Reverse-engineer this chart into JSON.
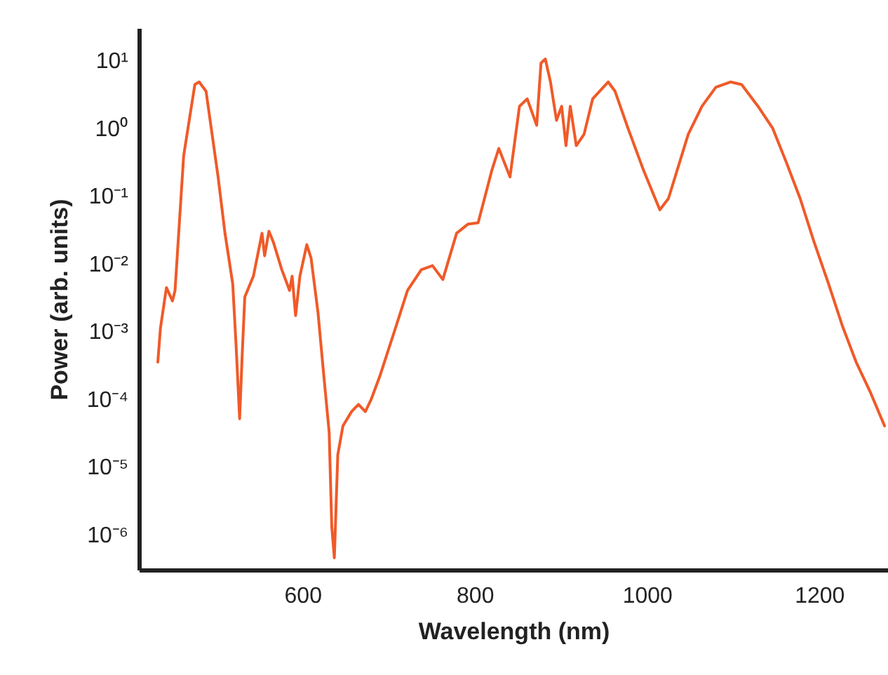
{
  "chart_data": {
    "type": "line",
    "xlabel": "Wavelength (nm)",
    "ylabel": "Power (arb. units)",
    "log": "y",
    "line_style": "solid",
    "xlim": [
      410,
      1280
    ],
    "xticks": [
      600,
      800,
      1000,
      1200
    ],
    "ylim": [
      3e-07,
      30
    ],
    "yticks": [
      {
        "value": 10,
        "label": "10¹"
      },
      {
        "value": 1,
        "label": "10⁰"
      },
      {
        "value": 0.1,
        "label": "10⁻¹"
      },
      {
        "value": 0.01,
        "label": "10⁻²"
      },
      {
        "value": 0.001,
        "label": "10⁻³"
      },
      {
        "value": 0.0001,
        "label": "10⁻⁴"
      },
      {
        "value": 1e-05,
        "label": "10⁻⁵"
      },
      {
        "value": 1e-06,
        "label": "10⁻⁶"
      }
    ],
    "x": [
      432,
      435,
      442,
      449,
      452,
      462,
      475,
      480,
      488,
      494,
      502,
      510,
      519,
      523,
      527,
      530,
      533,
      543,
      553,
      556,
      561,
      566,
      576,
      585,
      588,
      592,
      597,
      605,
      610,
      618,
      624,
      631,
      634,
      637,
      641,
      647,
      657,
      665,
      673,
      680,
      690,
      706,
      722,
      738,
      751,
      763,
      779,
      792,
      804,
      820,
      828,
      841,
      852,
      861,
      872,
      877,
      882,
      888,
      895,
      901,
      906,
      911,
      918,
      927,
      937,
      955,
      963,
      978,
      996,
      1015,
      1025,
      1048,
      1064,
      1080,
      1097,
      1110,
      1129,
      1146,
      1162,
      1178,
      1194,
      1211,
      1227,
      1243,
      1259,
      1276
    ],
    "series": [
      {
        "color": "#f05a28",
        "values": [
          0.00035,
          0.0011,
          0.0044,
          0.0028,
          0.004,
          0.39,
          4.4,
          4.8,
          3.5,
          1.0,
          0.19,
          0.028,
          0.005,
          0.00058,
          5.1e-05,
          0.00045,
          0.0032,
          0.0065,
          0.028,
          0.013,
          0.03,
          0.021,
          0.0081,
          0.004,
          0.0065,
          0.0017,
          0.0065,
          0.019,
          0.012,
          0.0019,
          0.00028,
          3.2e-05,
          1.3e-06,
          4.5e-07,
          1.5e-05,
          4e-05,
          6.5e-05,
          8.3e-05,
          6.5e-05,
          0.0001,
          0.00022,
          0.00093,
          0.004,
          0.0081,
          0.0093,
          0.0058,
          0.028,
          0.038,
          0.04,
          0.24,
          0.5,
          0.19,
          2.1,
          2.7,
          1.1,
          9.1,
          10.5,
          4.8,
          1.3,
          2.1,
          0.55,
          2.1,
          0.55,
          0.81,
          2.7,
          4.8,
          3.5,
          1.0,
          0.24,
          0.062,
          0.091,
          0.81,
          2.1,
          4,
          4.8,
          4.4,
          2.1,
          1.0,
          0.31,
          0.091,
          0.021,
          0.005,
          0.0012,
          0.00035,
          0.00013,
          4e-05
        ]
      }
    ]
  }
}
